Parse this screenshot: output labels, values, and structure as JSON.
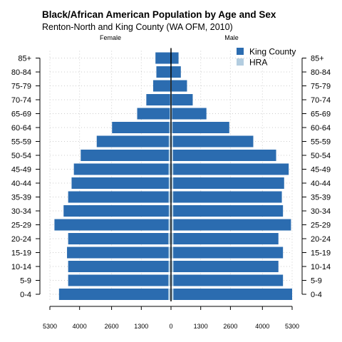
{
  "chart_data": {
    "type": "bar",
    "orientation": "horizontal",
    "title": "Black/African American Population by Age and Sex",
    "subtitle": "Renton-North and King County (WA OFM, 2010)",
    "left_label": "Female",
    "right_label": "Male",
    "categories": [
      "0-4",
      "5-9",
      "10-14",
      "15-19",
      "20-24",
      "25-29",
      "30-34",
      "35-39",
      "40-44",
      "45-49",
      "50-54",
      "55-59",
      "60-64",
      "65-69",
      "70-74",
      "75-79",
      "80-84",
      "85+"
    ],
    "series": [
      {
        "name": "King County",
        "color": "#2b6cb0",
        "female": [
          4900,
          4500,
          4500,
          4550,
          4500,
          5100,
          4700,
          4500,
          4350,
          4250,
          3950,
          3250,
          2580,
          1480,
          1080,
          780,
          640,
          680
        ],
        "male": [
          5300,
          4900,
          4700,
          4900,
          4700,
          5250,
          4900,
          4850,
          4950,
          5150,
          4600,
          3600,
          2550,
          1550,
          950,
          700,
          430,
          330
        ]
      },
      {
        "name": "HRA",
        "color": "#b3cde0",
        "female": [
          120,
          120,
          110,
          110,
          120,
          110,
          100,
          110,
          100,
          110,
          100,
          100,
          80,
          60,
          40,
          30,
          20,
          15
        ],
        "male": [
          110,
          110,
          110,
          100,
          110,
          110,
          100,
          100,
          100,
          100,
          90,
          90,
          70,
          50,
          40,
          30,
          20,
          15
        ]
      }
    ],
    "x_ticks": [
      "5300",
      "4000",
      "2600",
      "1300",
      "0",
      "1300",
      "2600",
      "4000",
      "5300"
    ],
    "x_tick_values": [
      -5300,
      -4000,
      -2600,
      -1300,
      0,
      1300,
      2600,
      4000,
      5300
    ],
    "xlim": [
      -5300,
      5300
    ],
    "grid": true,
    "legend_position": "top-right"
  }
}
